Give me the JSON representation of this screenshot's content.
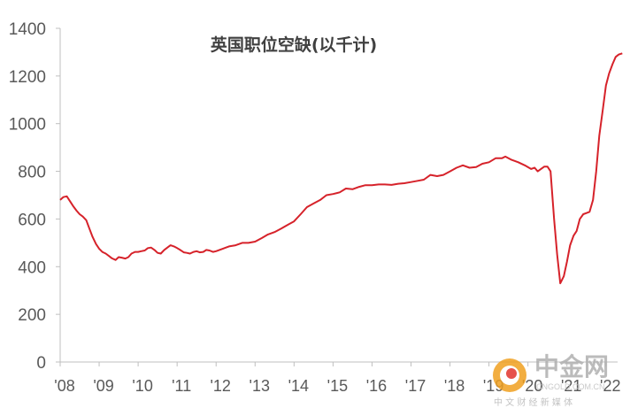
{
  "chart_data": {
    "type": "line",
    "title": "英国职位空缺(以千计)",
    "xlabel": "",
    "ylabel": "",
    "ylim": [
      0,
      1400
    ],
    "yticks": [
      0,
      200,
      400,
      600,
      800,
      1000,
      1200,
      1400
    ],
    "xlim": [
      2008.0,
      2022.3
    ],
    "xtick_labels": [
      "'08",
      "'09",
      "'10",
      "'11",
      "'12",
      "'13",
      "'14",
      "'15",
      "'16",
      "'17",
      "'18",
      "'19",
      "'20",
      "'21",
      "'22"
    ],
    "grid": false,
    "color": "#d6222a",
    "series": [
      {
        "points": [
          [
            2008.0,
            680
          ],
          [
            2008.08,
            692
          ],
          [
            2008.17,
            695
          ],
          [
            2008.25,
            675
          ],
          [
            2008.33,
            655
          ],
          [
            2008.42,
            635
          ],
          [
            2008.5,
            620
          ],
          [
            2008.58,
            610
          ],
          [
            2008.67,
            595
          ],
          [
            2008.75,
            560
          ],
          [
            2008.83,
            525
          ],
          [
            2008.92,
            495
          ],
          [
            2009.0,
            475
          ],
          [
            2009.08,
            462
          ],
          [
            2009.17,
            455
          ],
          [
            2009.25,
            445
          ],
          [
            2009.33,
            435
          ],
          [
            2009.42,
            428
          ],
          [
            2009.5,
            440
          ],
          [
            2009.58,
            438
          ],
          [
            2009.67,
            434
          ],
          [
            2009.75,
            440
          ],
          [
            2009.83,
            455
          ],
          [
            2009.92,
            462
          ],
          [
            2010.0,
            462
          ],
          [
            2010.08,
            465
          ],
          [
            2010.17,
            468
          ],
          [
            2010.25,
            478
          ],
          [
            2010.33,
            480
          ],
          [
            2010.42,
            470
          ],
          [
            2010.5,
            458
          ],
          [
            2010.58,
            455
          ],
          [
            2010.67,
            470
          ],
          [
            2010.75,
            480
          ],
          [
            2010.83,
            490
          ],
          [
            2010.92,
            485
          ],
          [
            2011.0,
            478
          ],
          [
            2011.08,
            470
          ],
          [
            2011.17,
            460
          ],
          [
            2011.25,
            458
          ],
          [
            2011.33,
            455
          ],
          [
            2011.42,
            462
          ],
          [
            2011.5,
            465
          ],
          [
            2011.58,
            460
          ],
          [
            2011.67,
            462
          ],
          [
            2011.75,
            470
          ],
          [
            2011.83,
            468
          ],
          [
            2011.92,
            462
          ],
          [
            2012.0,
            465
          ],
          [
            2012.17,
            475
          ],
          [
            2012.33,
            485
          ],
          [
            2012.5,
            490
          ],
          [
            2012.67,
            500
          ],
          [
            2012.83,
            500
          ],
          [
            2013.0,
            505
          ],
          [
            2013.17,
            520
          ],
          [
            2013.33,
            535
          ],
          [
            2013.5,
            545
          ],
          [
            2013.67,
            560
          ],
          [
            2013.83,
            575
          ],
          [
            2014.0,
            590
          ],
          [
            2014.17,
            620
          ],
          [
            2014.33,
            650
          ],
          [
            2014.5,
            665
          ],
          [
            2014.67,
            680
          ],
          [
            2014.83,
            700
          ],
          [
            2015.0,
            705
          ],
          [
            2015.17,
            712
          ],
          [
            2015.33,
            728
          ],
          [
            2015.5,
            725
          ],
          [
            2015.67,
            735
          ],
          [
            2015.83,
            742
          ],
          [
            2016.0,
            742
          ],
          [
            2016.17,
            745
          ],
          [
            2016.33,
            745
          ],
          [
            2016.5,
            743
          ],
          [
            2016.67,
            748
          ],
          [
            2016.83,
            750
          ],
          [
            2017.0,
            755
          ],
          [
            2017.17,
            760
          ],
          [
            2017.33,
            765
          ],
          [
            2017.5,
            785
          ],
          [
            2017.67,
            780
          ],
          [
            2017.83,
            785
          ],
          [
            2018.0,
            800
          ],
          [
            2018.17,
            815
          ],
          [
            2018.33,
            825
          ],
          [
            2018.5,
            815
          ],
          [
            2018.67,
            818
          ],
          [
            2018.83,
            832
          ],
          [
            2019.0,
            838
          ],
          [
            2019.17,
            855
          ],
          [
            2019.33,
            855
          ],
          [
            2019.42,
            862
          ],
          [
            2019.58,
            848
          ],
          [
            2019.75,
            838
          ],
          [
            2019.92,
            825
          ],
          [
            2020.08,
            810
          ],
          [
            2020.17,
            815
          ],
          [
            2020.25,
            800
          ],
          [
            2020.42,
            820
          ],
          [
            2020.5,
            820
          ],
          [
            2020.58,
            800
          ],
          [
            2020.67,
            600
          ],
          [
            2020.75,
            450
          ],
          [
            2020.83,
            330
          ],
          [
            2020.92,
            360
          ],
          [
            2021.0,
            420
          ],
          [
            2021.08,
            490
          ],
          [
            2021.17,
            530
          ],
          [
            2021.25,
            550
          ],
          [
            2021.33,
            600
          ],
          [
            2021.42,
            620
          ],
          [
            2021.5,
            625
          ],
          [
            2021.58,
            630
          ],
          [
            2021.67,
            680
          ],
          [
            2021.75,
            800
          ],
          [
            2021.83,
            950
          ],
          [
            2021.92,
            1060
          ],
          [
            2022.0,
            1160
          ],
          [
            2022.08,
            1210
          ],
          [
            2022.17,
            1250
          ],
          [
            2022.25,
            1280
          ],
          [
            2022.33,
            1290
          ],
          [
            2022.42,
            1295
          ]
        ]
      }
    ]
  },
  "watermark": {
    "brand": "中金网",
    "url": "CNGOLD.COM.CN",
    "tagline": "中 文 财 经 新 媒 体"
  }
}
